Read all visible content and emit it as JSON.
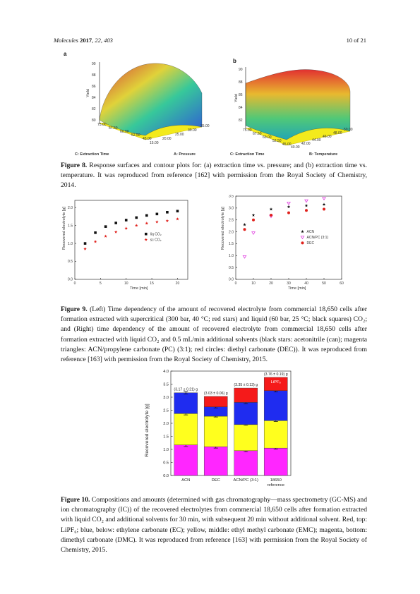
{
  "header": {
    "journal": "Molecules",
    "year": "2017",
    "volume_pages": ", 22, 403",
    "page_info": "10 of 21"
  },
  "figure8": {
    "panel_a": {
      "letter": "a",
      "z_label": "Yield",
      "x_label": "C: Extraction Time",
      "y_label": "A: Pressure",
      "z_ticks": [
        "90",
        "88",
        "86",
        "84",
        "82",
        "80"
      ],
      "x_ticks": [
        "75.00",
        "67.50",
        "60.00",
        "52.50",
        "45.00"
      ],
      "y_ticks": [
        "15.00",
        "20.00",
        "25.00",
        "30.00",
        "35.00"
      ]
    },
    "panel_b": {
      "letter": "b",
      "z_label": "Yield",
      "x_label": "C: Extraction Time",
      "y_label": "B: Temperature",
      "z_ticks": [
        "90",
        "88",
        "86",
        "84",
        "82"
      ],
      "x_ticks": [
        "75.00",
        "67.50",
        "60.00",
        "52.50",
        "45.00"
      ],
      "y_ticks": [
        "40.00",
        "42.00",
        "44.00",
        "46.00",
        "48.00",
        "50.00"
      ]
    },
    "caption_label": "Figure 8.",
    "caption": " Response surfaces and contour plots for: (a) extraction time vs. pressure; and (b) extraction time vs. temperature. It was reproduced from reference [162] with permission from the Royal Society of Chemistry, 2014."
  },
  "figure9": {
    "caption_label": "Figure 9.",
    "caption": " (Left) Time dependency of the amount of recovered electrolyte from commercial 18,650 cells after formation extracted with supercritical (300 bar, 40 °C; red stars) and liquid (60 bar, 25 °C; black squares) CO₂; and (Right) time dependency of the amount of recovered electrolyte from commercial 18,650 cells after formation extracted with liquid CO₂ and 0.5 mL/min additional solvents (black stars: acetonitrile (can); magenta triangles: ACN/propylene carbonate (PC) (3:1); red circles: diethyl carbonate (DEC)). It was reproduced from reference [163] with permission from the Royal Society of Chemistry, 2015."
  },
  "chart_data": [
    {
      "id": "fig9-left",
      "type": "scatter",
      "xlabel": "Time [min]",
      "ylabel": "Recovered electrolyte [g]",
      "xlim": [
        0,
        22
      ],
      "ylim": [
        0,
        2.2
      ],
      "xticks": [
        "0",
        "5",
        "10",
        "15",
        "20"
      ],
      "yticks": [
        "0.0",
        "0.5",
        "1.0",
        "1.5",
        "2.0"
      ],
      "legend_position": "right",
      "series": [
        {
          "name": "liq CO₂",
          "color": "#111111",
          "marker": "square",
          "x": [
            2,
            4,
            6,
            8,
            10,
            12,
            14,
            16,
            18,
            20
          ],
          "y": [
            1.0,
            1.3,
            1.47,
            1.57,
            1.65,
            1.72,
            1.78,
            1.82,
            1.87,
            1.9
          ]
        },
        {
          "name": "sc CO₂",
          "color": "#e0201b",
          "marker": "star",
          "x": [
            2,
            4,
            6,
            8,
            10,
            12,
            14,
            16,
            18,
            20
          ],
          "y": [
            0.85,
            1.05,
            1.2,
            1.32,
            1.42,
            1.5,
            1.56,
            1.6,
            1.63,
            1.68
          ]
        }
      ]
    },
    {
      "id": "fig9-right",
      "type": "scatter",
      "xlabel": "Time [min]",
      "ylabel": "Recovered electrolyte [g]",
      "xlim": [
        0,
        60
      ],
      "ylim": [
        0,
        3.5
      ],
      "xticks": [
        "0",
        "10",
        "20",
        "30",
        "40",
        "50",
        "60"
      ],
      "yticks": [
        "0.0",
        "0.5",
        "1.0",
        "1.5",
        "2.0",
        "2.5",
        "3.0",
        "3.5"
      ],
      "legend_position": "right",
      "series": [
        {
          "name": "ACN",
          "color": "#111111",
          "marker": "star",
          "x": [
            5,
            10,
            20,
            30,
            40,
            50
          ],
          "y": [
            2.3,
            2.7,
            2.95,
            3.05,
            3.1,
            3.15
          ]
        },
        {
          "name": "ACN/PC (3:1)",
          "color": "#e040e0",
          "marker": "triangle",
          "x": [
            5,
            10,
            20,
            30,
            40,
            50
          ],
          "y": [
            0.95,
            1.95,
            2.65,
            3.2,
            3.3,
            3.4
          ]
        },
        {
          "name": "DEC",
          "color": "#e0201b",
          "marker": "circle",
          "x": [
            5,
            10,
            20,
            30,
            40,
            50
          ],
          "y": [
            2.1,
            2.5,
            2.7,
            2.8,
            2.9,
            2.95
          ]
        }
      ]
    },
    {
      "id": "fig10",
      "type": "bar",
      "stacked": true,
      "ylabel": "Recovered electrolyte [g]",
      "ylim": [
        0,
        4.0
      ],
      "yticks": [
        "0.0",
        "0.5",
        "1.0",
        "1.5",
        "2.0",
        "2.5",
        "3.0",
        "3.5",
        "4.0"
      ],
      "categories": [
        "ACN",
        "DEC",
        "ACN/PC (3:1)",
        "18650"
      ],
      "category_sublabels": [
        "",
        "",
        "",
        "reference"
      ],
      "totals": [
        "(3.17 ± 0.21) g",
        "(3.03 ± 0.06) g",
        "(3.35 ± 0.13) g",
        "(3.76 ± 0.19) g"
      ],
      "series": [
        {
          "name": "DMC",
          "color": "#ff26ff",
          "values": [
            1.17,
            1.1,
            0.95,
            1.05
          ]
        },
        {
          "name": "EMC",
          "color": "#ffff1e",
          "values": [
            1.2,
            1.17,
            1.0,
            1.05
          ]
        },
        {
          "name": "EC",
          "color": "#1f2cf0",
          "values": [
            0.8,
            0.36,
            0.85,
            1.15
          ]
        },
        {
          "name": "LiPF₆",
          "color": "#f51a1a",
          "values": [
            0.0,
            0.4,
            0.55,
            0.51
          ]
        }
      ],
      "errors": [
        [
          0.06,
          0.05,
          0.05,
          0.04
        ],
        [
          0.05,
          0.03,
          0.03,
          0.03
        ],
        [
          0.05,
          0.04,
          0.05,
          0.05
        ]
      ],
      "annotation": "LiPF₆"
    }
  ],
  "figure10": {
    "caption_label": "Figure 10.",
    "caption": " Compositions and amounts (determined with gas chromatography—mass spectrometry (GC-MS) and ion chromatography (IC)) of the recovered electrolytes from commercial 18,650 cells after formation extracted with liquid CO₂ and additional solvents for 30 min, with subsequent 20 min without additional solvent. Red, top: LiPF₆; blue, below: ethylene carbonate (EC); yellow, middle: ethyl methyl carbonate (EMC); magenta, bottom: dimethyl carbonate (DMC). It was reproduced from reference [163] with permission from the Royal Society of Chemistry, 2015."
  }
}
